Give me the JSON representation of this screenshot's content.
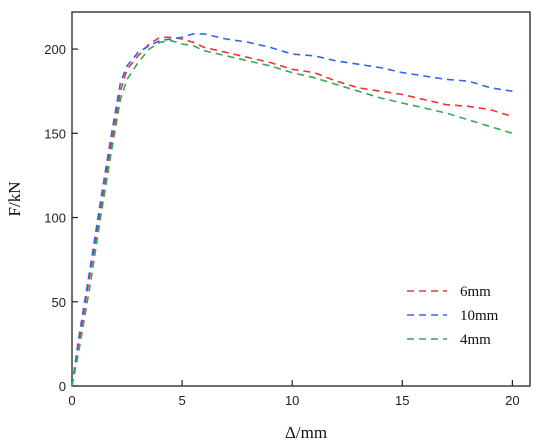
{
  "chart_data": {
    "type": "line",
    "title": "",
    "xlabel": "Δ/mm",
    "ylabel": "F/kN",
    "xlim": [
      0,
      20.8
    ],
    "ylim": [
      0,
      222
    ],
    "xticks": [
      0,
      5,
      10,
      15,
      20
    ],
    "yticks": [
      0,
      50,
      100,
      150,
      200
    ],
    "grid": false,
    "legend_position": "lower-right",
    "series": [
      {
        "name": "6mm",
        "color": "#ee3333",
        "x": [
          0,
          0.3,
          0.8,
          1.3,
          1.8,
          2.2,
          2.5,
          3.0,
          3.5,
          4.0,
          4.5,
          5.0,
          5.5,
          6,
          7,
          8,
          9,
          10,
          11,
          12,
          13,
          14,
          15,
          16,
          17,
          18,
          19,
          20
        ],
        "y": [
          0,
          25,
          65,
          105,
          145,
          175,
          188,
          196,
          203,
          207,
          207,
          206,
          204,
          201,
          198,
          195,
          192,
          188,
          186,
          181,
          177,
          175,
          173,
          170,
          167,
          166,
          164,
          160
        ]
      },
      {
        "name": "10mm",
        "color": "#3366ee",
        "x": [
          0,
          0.3,
          0.8,
          1.3,
          1.8,
          2.2,
          2.5,
          3.0,
          3.5,
          4.0,
          4.5,
          5.0,
          5.5,
          6,
          7,
          8,
          9,
          10,
          11,
          12,
          13,
          14,
          15,
          16,
          17,
          18,
          19,
          20
        ],
        "y": [
          0,
          28,
          68,
          110,
          150,
          180,
          190,
          198,
          202,
          205,
          206,
          207,
          209,
          209,
          206,
          204,
          201,
          197,
          196,
          193,
          191,
          189,
          186,
          184,
          182,
          181,
          177,
          175
        ]
      },
      {
        "name": "4mm",
        "color": "#33aa55",
        "x": [
          0,
          0.3,
          0.8,
          1.3,
          1.8,
          2.2,
          2.5,
          3.0,
          3.5,
          4.0,
          4.5,
          5.0,
          5.5,
          6,
          7,
          8,
          9,
          10,
          11,
          12,
          13,
          14,
          15,
          16,
          17,
          18,
          19,
          20
        ],
        "y": [
          0,
          20,
          58,
          100,
          140,
          170,
          182,
          192,
          200,
          204,
          205,
          203,
          202,
          199,
          196,
          193,
          190,
          186,
          183,
          179,
          175,
          171,
          168,
          165,
          162,
          158,
          154,
          150
        ]
      }
    ]
  }
}
